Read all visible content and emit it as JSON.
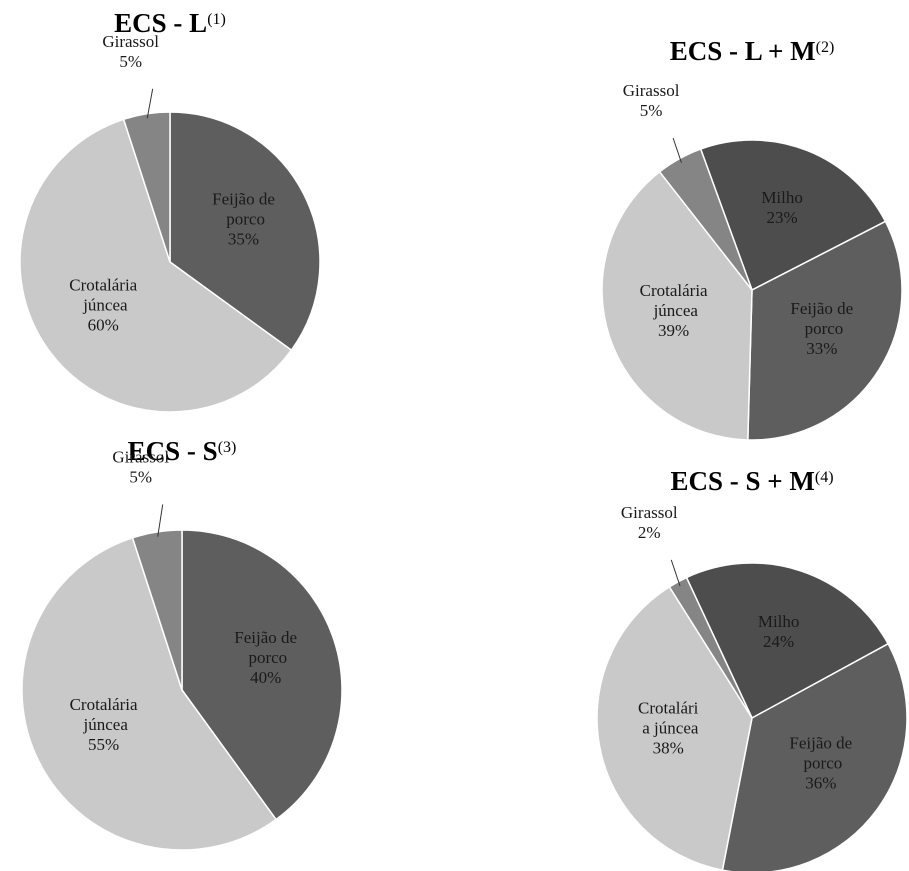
{
  "chart_data": [
    {
      "type": "pie",
      "title": "ECS - L",
      "title_note": "(1)",
      "categories": [
        "Feijão de porco",
        "Crotalária júncea",
        "Girassol"
      ],
      "values": [
        35,
        60,
        5
      ],
      "value_labels": [
        "35%",
        "60%",
        "5%"
      ],
      "colors": [
        "#5e5e5e",
        "#c9c9c9",
        "#858585"
      ]
    },
    {
      "type": "pie",
      "title": "ECS - L + M",
      "title_note": "(2)",
      "categories": [
        "Milho",
        "Feijão de porco",
        "Crotalária júncea",
        "Girassol"
      ],
      "values": [
        23,
        33,
        39,
        5
      ],
      "value_labels": [
        "23%",
        "33%",
        "39%",
        "5%"
      ],
      "colors": [
        "#4d4d4d",
        "#5e5e5e",
        "#c9c9c9",
        "#858585"
      ]
    },
    {
      "type": "pie",
      "title": "ECS - S",
      "title_note": "(3)",
      "categories": [
        "Feijão de porco",
        "Crotalária júncea",
        "Girassol"
      ],
      "values": [
        40,
        55,
        5
      ],
      "value_labels": [
        "40%",
        "55%",
        "5%"
      ],
      "colors": [
        "#5e5e5e",
        "#c9c9c9",
        "#858585"
      ]
    },
    {
      "type": "pie",
      "title": "ECS - S + M",
      "title_note": "(4)",
      "categories": [
        "Milho",
        "Feijão de porco",
        "Crotalári a júncea",
        "Girassol"
      ],
      "values": [
        24,
        36,
        38,
        2
      ],
      "value_labels": [
        "24%",
        "36%",
        "38%",
        "2%"
      ],
      "colors": [
        "#4d4d4d",
        "#5e5e5e",
        "#c9c9c9",
        "#858585"
      ]
    }
  ]
}
